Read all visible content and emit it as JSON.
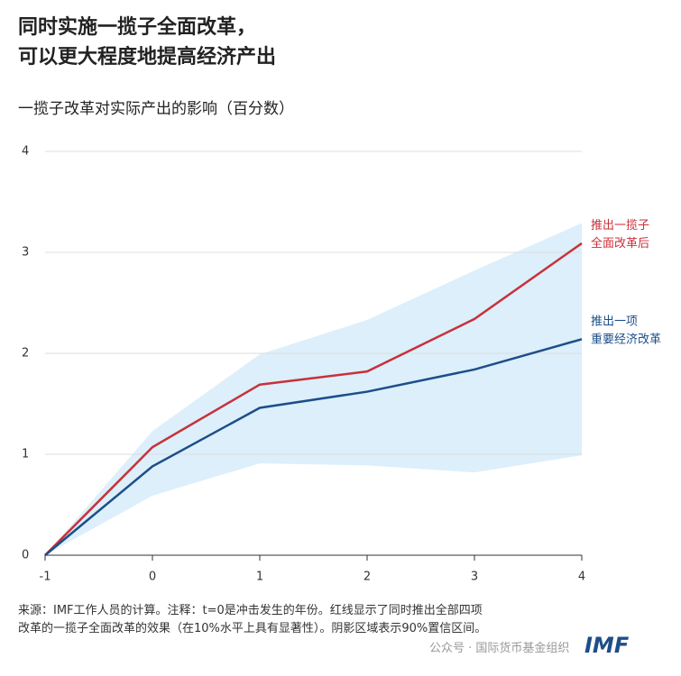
{
  "chart_data": {
    "type": "line",
    "title": "同时实施一揽子全面改革，\n可以更大程度地提高经济产出",
    "subtitle": "一揽子改革对实际产出的影响（百分数）",
    "x": [
      -1,
      0,
      1,
      2,
      3,
      4
    ],
    "xlim": [
      -1,
      4
    ],
    "xticks": [
      -1,
      0,
      1,
      2,
      3,
      4
    ],
    "ylim": [
      0,
      4
    ],
    "yticks": [
      0,
      1,
      2,
      3,
      4
    ],
    "grid": true,
    "series": [
      {
        "name": "推出一揽子\n全面改革后",
        "color": "#c8313a",
        "values": [
          0,
          1.07,
          1.69,
          1.82,
          2.34,
          3.09
        ]
      },
      {
        "name": "推出一项\n重要经济改革",
        "color": "#1d4e89",
        "values": [
          0,
          0.88,
          1.46,
          1.62,
          1.84,
          2.14
        ]
      }
    ],
    "band": {
      "color": "#dcefFb",
      "upper": [
        0,
        1.23,
        1.99,
        2.33,
        2.82,
        3.29
      ],
      "lower": [
        0,
        0.59,
        0.91,
        0.89,
        0.82,
        0.99
      ]
    },
    "note": "来源：IMF工作人员的计算。注释：t=0是冲击发生的年份。红线显示了同时推出全部四项\n改革的一揽子全面改革的效果（在10%水平上具有显著性）。阴影区域表示90%置信区间。",
    "watermark": "公众号 · 国际货币基金组织",
    "logo": "IMF"
  }
}
